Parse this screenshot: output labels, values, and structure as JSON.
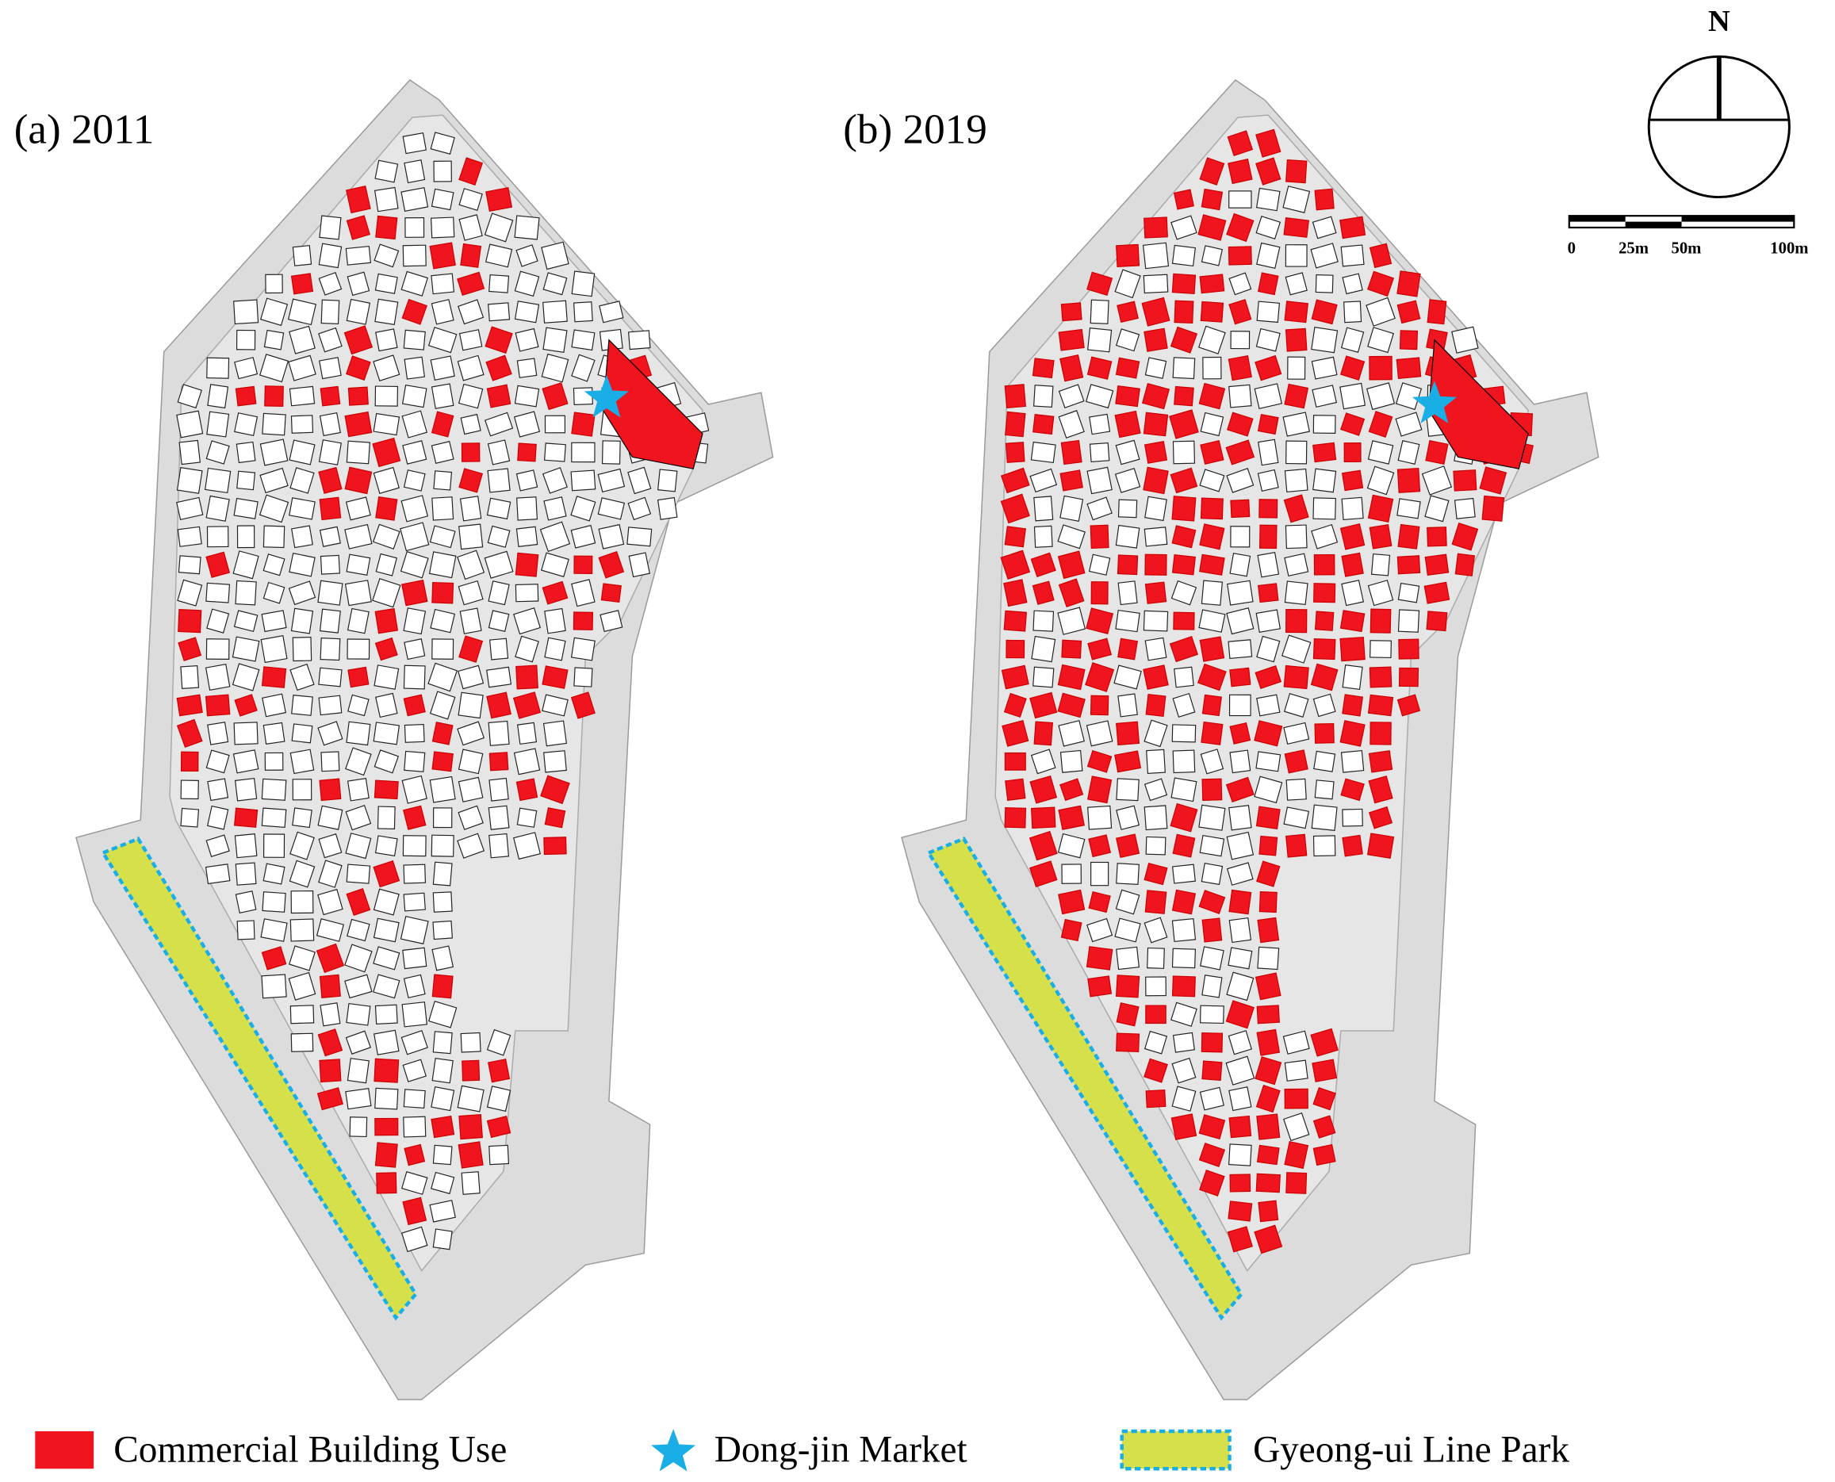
{
  "panels": [
    {
      "label": "(a) 2011"
    },
    {
      "label": "(b) 2019"
    }
  ],
  "compass": {
    "north": "N"
  },
  "scale_bar": {
    "labels": [
      "0",
      "25m",
      "50m",
      "100m"
    ]
  },
  "legend": [
    {
      "label": "Commercial Building Use"
    },
    {
      "label": "Dong-jin Market"
    },
    {
      "label": "Gyeong-ui Line Park"
    }
  ]
}
